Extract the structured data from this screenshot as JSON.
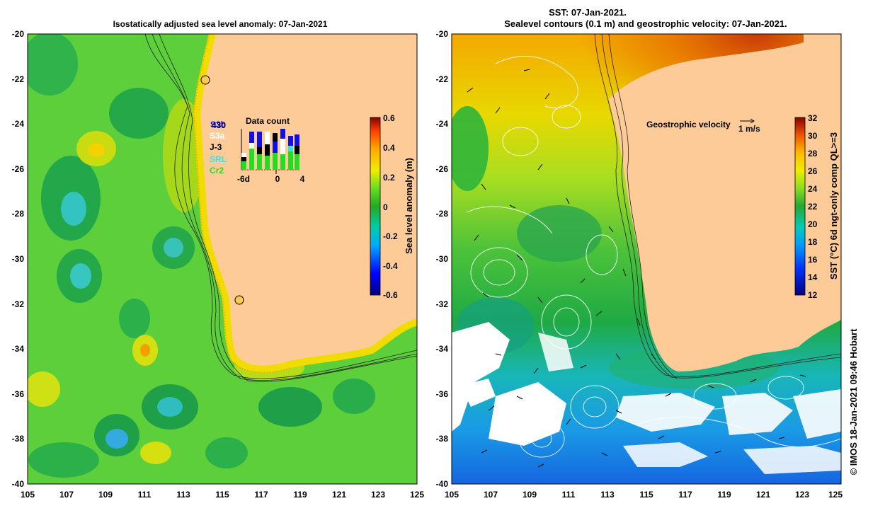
{
  "left_panel": {
    "title": "Isostatically adjusted sea level anomaly: 07-Jan-2021",
    "x_ticks": [
      "105",
      "107",
      "109",
      "111",
      "113",
      "115",
      "117",
      "119",
      "121",
      "123",
      "125"
    ],
    "y_ticks": [
      "-20",
      "-22",
      "-24",
      "-26",
      "-28",
      "-30",
      "-32",
      "-34",
      "-36",
      "-38",
      "-40"
    ],
    "colorbar": {
      "label": "Sea level anomaly (m)",
      "ticks": [
        "0.6",
        "0.4",
        "0.2",
        "0",
        "-0.2",
        "-0.4",
        "-0.6"
      ],
      "range": [
        -0.6,
        0.6
      ]
    },
    "data_count": {
      "title": "Data count",
      "satellites": [
        {
          "name": "S3b",
          "color": "#1010e0"
        },
        {
          "name": "J3N",
          "color": "#1010e0"
        },
        {
          "name": "S3a",
          "color": "#ffffff"
        },
        {
          "name": "J-3",
          "color": "#000000"
        },
        {
          "name": "SRL",
          "color": "#33e6e6"
        },
        {
          "name": "Cr2",
          "color": "#22dd22"
        }
      ],
      "overlap_label": "430",
      "axis": [
        "-6d",
        "0",
        "4"
      ]
    }
  },
  "right_panel": {
    "title_line1": "SST: 07-Jan-2021.",
    "title_line2": "Sealevel contours (0.1 m) and geostrophic velocity: 07-Jan-2021.",
    "x_ticks": [
      "105",
      "107",
      "109",
      "111",
      "113",
      "115",
      "117",
      "119",
      "121",
      "123",
      "125"
    ],
    "y_ticks": [
      "-20",
      "-22",
      "-24",
      "-26",
      "-28",
      "-30",
      "-32",
      "-34",
      "-36",
      "-38",
      "-40"
    ],
    "legend": {
      "label": "Geostrophic velocity",
      "scale": "1 m/s"
    },
    "colorbar": {
      "label": "SST (°C) 6d ngt-only comp QL>=3",
      "ticks": [
        "32",
        "30",
        "28",
        "26",
        "24",
        "22",
        "20",
        "18",
        "16",
        "14",
        "12"
      ],
      "range": [
        12,
        32
      ]
    }
  },
  "credit": "© IMOS 18-Jan-2021 09:46 Hobart"
}
